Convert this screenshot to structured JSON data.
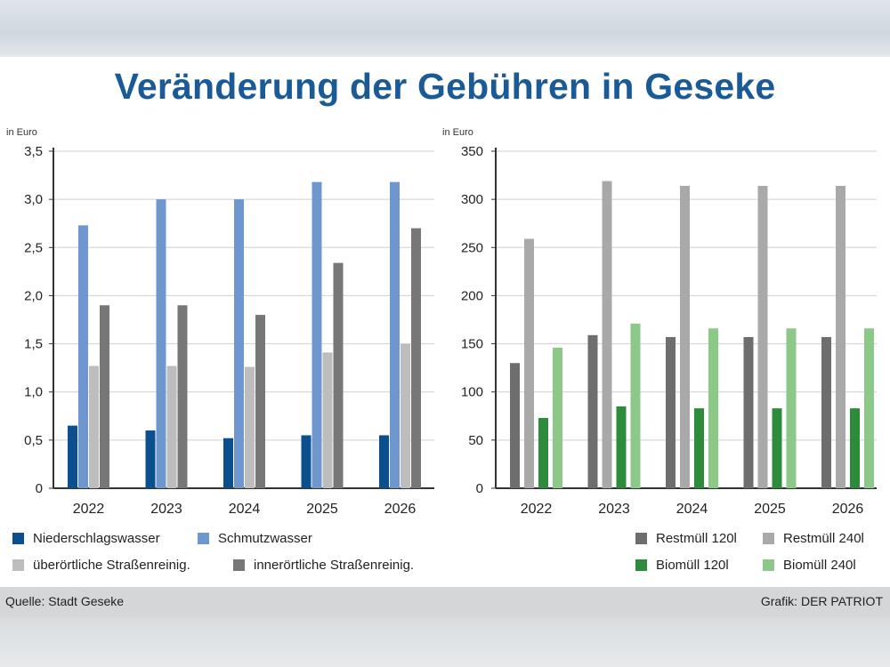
{
  "title": "Veränderung der Gebühren in Geseke",
  "source": "Quelle: Stadt Geseke",
  "credit": "Grafik: DER PATRIOT",
  "colors": {
    "niederschlag": "#0b4f8f",
    "schmutz": "#6e97cf",
    "ueberoertlich": "#bdbdbd",
    "inneroertlich": "#777777",
    "restmuell120": "#6e6e6e",
    "restmuell240": "#a9a9a9",
    "biomuell120": "#2d8c3c",
    "biomuell240": "#8cc887",
    "grid": "#cfcfcf",
    "title": "#1a5a97"
  },
  "chart_data": [
    {
      "type": "bar",
      "unit_label": "in Euro",
      "categories": [
        "2022",
        "2023",
        "2024",
        "2025",
        "2026"
      ],
      "ylim": [
        0,
        3.5
      ],
      "yticks": [
        "0",
        "0,5",
        "1,0",
        "1,5",
        "2,0",
        "2,5",
        "3,0",
        "3,5"
      ],
      "grid": true,
      "series": [
        {
          "name": "Niederschlagswasser",
          "color_key": "niederschlag",
          "values": [
            0.65,
            0.6,
            0.52,
            0.55,
            0.55
          ]
        },
        {
          "name": "Schmutzwasser",
          "color_key": "schmutz",
          "values": [
            2.73,
            3.0,
            3.0,
            3.18,
            3.18
          ]
        },
        {
          "name": "überörtliche Straßenreinig.",
          "color_key": "ueberoertlich",
          "values": [
            1.27,
            1.27,
            1.26,
            1.41,
            1.5
          ]
        },
        {
          "name": "innerörtliche Straßenreinig.",
          "color_key": "inneroertlich",
          "values": [
            1.9,
            1.9,
            1.8,
            2.34,
            2.7
          ]
        }
      ]
    },
    {
      "type": "bar",
      "unit_label": "in Euro",
      "categories": [
        "2022",
        "2023",
        "2024",
        "2025",
        "2026"
      ],
      "ylim": [
        0,
        350
      ],
      "yticks": [
        "0",
        "50",
        "100",
        "150",
        "200",
        "250",
        "300",
        "350"
      ],
      "grid": true,
      "series": [
        {
          "name": "Restmüll 120l",
          "color_key": "restmuell120",
          "values": [
            130,
            159,
            157,
            157,
            157
          ]
        },
        {
          "name": "Restmüll 240l",
          "color_key": "restmuell240",
          "values": [
            259,
            319,
            314,
            314,
            314
          ]
        },
        {
          "name": "Biomüll 120l",
          "color_key": "biomuell120",
          "values": [
            73,
            85,
            83,
            83,
            83
          ]
        },
        {
          "name": "Biomüll 240l",
          "color_key": "biomuell240",
          "values": [
            146,
            171,
            166,
            166,
            166
          ]
        }
      ]
    }
  ]
}
